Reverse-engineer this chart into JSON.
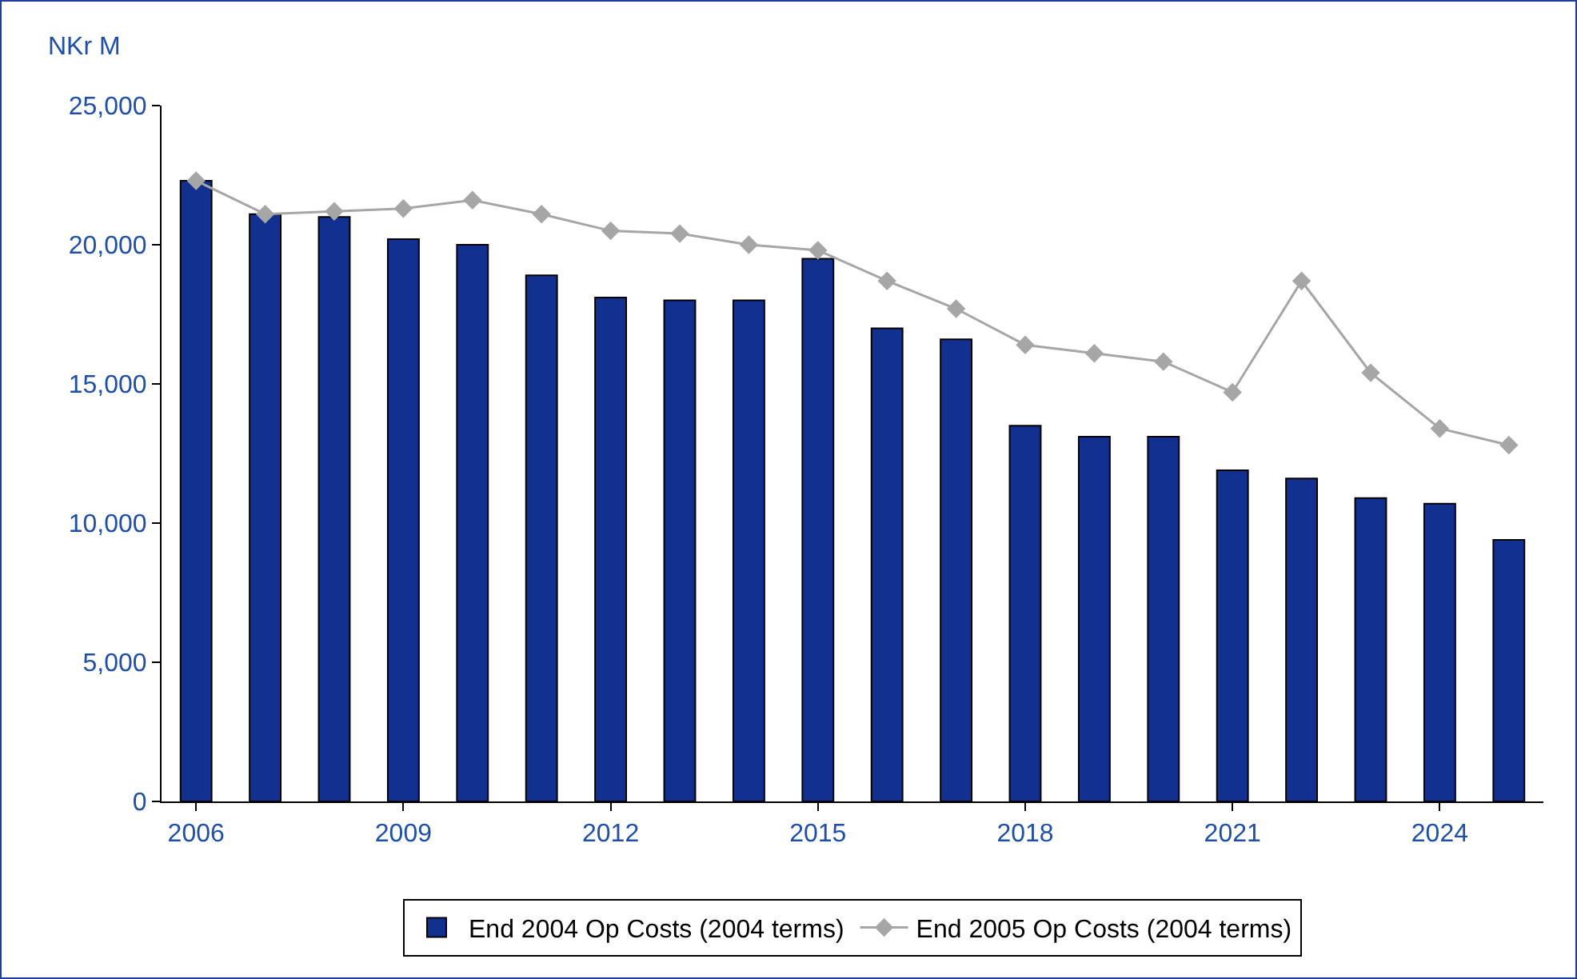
{
  "chart_data": {
    "type": "bar",
    "ylabel": "NKr M",
    "x": [
      2006,
      2007,
      2008,
      2009,
      2010,
      2011,
      2012,
      2013,
      2014,
      2015,
      2016,
      2017,
      2018,
      2019,
      2020,
      2021,
      2022,
      2023,
      2024,
      2025
    ],
    "series": [
      {
        "name": "End 2004 Op Costs (2004 terms)",
        "color": "#12308f",
        "values": [
          22300,
          21100,
          21000,
          20200,
          20000,
          18900,
          18100,
          18000,
          18000,
          19500,
          17000,
          16600,
          13500,
          13100,
          13100,
          11900,
          11600,
          10900,
          10700,
          9400
        ]
      },
      {
        "name": "End 2005 Op Costs (2004 terms)",
        "type": "line",
        "color": "#a6a6a6",
        "marker": "diamond",
        "values": [
          22300,
          21100,
          21200,
          21300,
          21600,
          21100,
          20500,
          20400,
          20000,
          19800,
          18700,
          17700,
          16400,
          16100,
          15800,
          14700,
          18700,
          15400,
          13400,
          12800
        ]
      }
    ],
    "xlim": [
      2005.5,
      2025.5
    ],
    "xticks": [
      2006,
      2009,
      2012,
      2015,
      2018,
      2021,
      2024
    ],
    "ylim": [
      0,
      25000
    ],
    "yticks": [
      {
        "value": 0,
        "label": "0"
      },
      {
        "value": 5000,
        "label": "5,000"
      },
      {
        "value": 10000,
        "label": "10,000"
      },
      {
        "value": 15000,
        "label": "15,000"
      },
      {
        "value": 20000,
        "label": "20,000"
      },
      {
        "value": 25000,
        "label": "25,000"
      }
    ],
    "grid": false,
    "legend": "bottom"
  }
}
